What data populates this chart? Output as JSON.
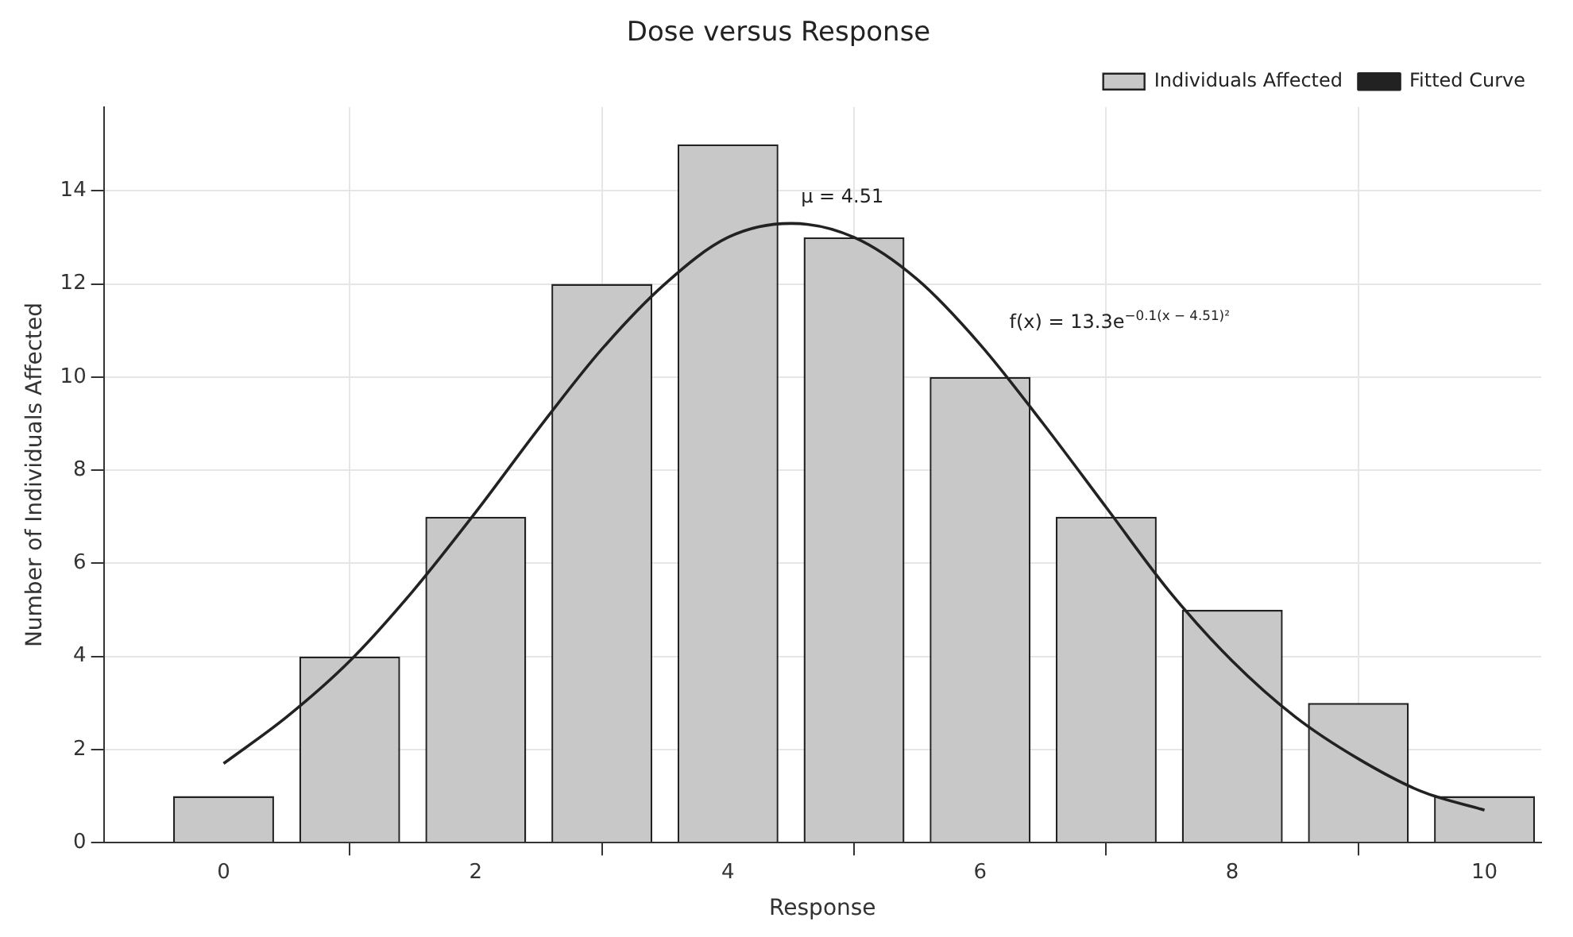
{
  "chart_data": {
    "type": "bar",
    "title": "Dose versus Response",
    "xlabel": "Response",
    "ylabel": "Number of Individuals Affected",
    "xlim": [
      -0.95,
      10.45
    ],
    "xticks": [
      0,
      2,
      4,
      6,
      8,
      10
    ],
    "ylim": [
      0,
      15.8
    ],
    "yticks": [
      0,
      2,
      4,
      6,
      8,
      10,
      12,
      14
    ],
    "grid": true,
    "legend": "top right",
    "series": [
      {
        "name": "Individuals Affected",
        "color": "#c8c8c8",
        "x": [
          0,
          1,
          2,
          3,
          4,
          5,
          6,
          7,
          8,
          9,
          10
        ],
        "values": [
          1,
          4,
          7,
          12,
          15,
          13,
          10,
          7,
          5,
          3,
          1
        ]
      },
      {
        "name": "Fitted Curve",
        "type": "line",
        "color": "#222222",
        "x": [
          0,
          0.5,
          1,
          1.5,
          2,
          2.5,
          3,
          3.5,
          4,
          4.5,
          5,
          5.5,
          6,
          6.5,
          7,
          7.5,
          8,
          8.5,
          9,
          9.5,
          10
        ],
        "values": [
          1.7,
          2.7,
          3.9,
          5.4,
          7.1,
          8.9,
          10.6,
          12.0,
          13.0,
          13.3,
          13.0,
          12.1,
          10.7,
          9.0,
          7.2,
          5.4,
          3.9,
          2.7,
          1.8,
          1.1,
          0.7
        ]
      }
    ],
    "annotations": [
      "μ = 4.51",
      "f(x) = 13.3e$^{−0.1(x − 4.51)²}$"
    ]
  }
}
